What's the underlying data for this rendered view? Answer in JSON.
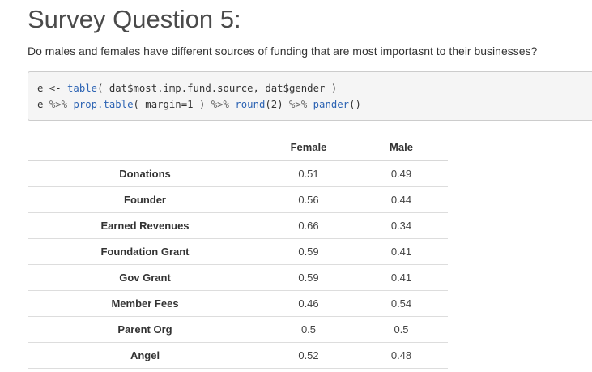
{
  "page": {
    "title": "Survey Question 5:",
    "question": "Do males and females have different sources of funding that are most importasnt to their businesses?"
  },
  "code": {
    "line1": {
      "prefix": "e <- ",
      "fn": "table",
      "args": "( dat$most.imp.fund.source, dat$gender )"
    },
    "line2": {
      "prefix": "e ",
      "pipe1": "%>%",
      "fn1": "prop.table",
      "args1": "( margin=1 ) ",
      "pipe2": "%>%",
      "fn2": "round",
      "args2": "(2) ",
      "pipe3": "%>%",
      "fn3": "pander",
      "args3": "()"
    }
  },
  "table": {
    "headers": [
      "",
      "Female",
      "Male"
    ],
    "rows": [
      {
        "label": "Donations",
        "female": "0.51",
        "male": "0.49"
      },
      {
        "label": "Founder",
        "female": "0.56",
        "male": "0.44"
      },
      {
        "label": "Earned Revenues",
        "female": "0.66",
        "male": "0.34"
      },
      {
        "label": "Foundation Grant",
        "female": "0.59",
        "male": "0.41"
      },
      {
        "label": "Gov Grant",
        "female": "0.59",
        "male": "0.41"
      },
      {
        "label": "Member Fees",
        "female": "0.46",
        "male": "0.54"
      },
      {
        "label": "Parent Org",
        "female": "0.5",
        "male": "0.5"
      },
      {
        "label": "Angel",
        "female": "0.52",
        "male": "0.48"
      }
    ]
  },
  "colors": {
    "function": "#2c63b3",
    "text": "#333333",
    "code_background": "#f5f5f5"
  }
}
